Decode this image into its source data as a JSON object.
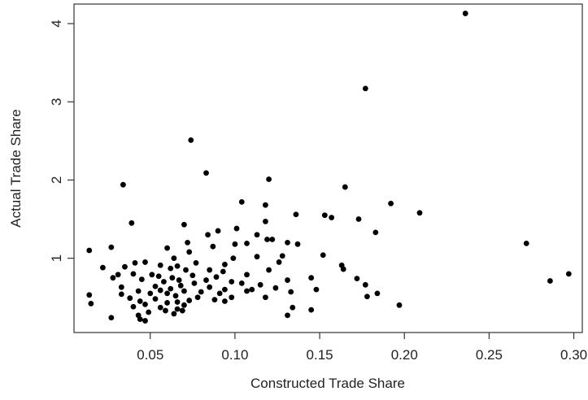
{
  "chart_data": {
    "type": "scatter",
    "title": "",
    "xlabel": "Constructed Trade Share",
    "ylabel": "Actual Trade Share",
    "xlim": [
      0.005,
      0.305
    ],
    "ylim": [
      0.05,
      4.25
    ],
    "x_ticks": [
      0.05,
      0.1,
      0.15,
      0.2,
      0.25,
      0.3
    ],
    "x_tick_labels": [
      "0.05",
      "0.10",
      "0.15",
      "0.20",
      "0.25",
      "0.30"
    ],
    "y_ticks": [
      1,
      2,
      3,
      4
    ],
    "y_tick_labels": [
      "1",
      "2",
      "3",
      "4"
    ],
    "grid": false,
    "marker_color": "#000000",
    "points": [
      [
        0.236,
        4.13
      ],
      [
        0.177,
        3.17
      ],
      [
        0.074,
        2.51
      ],
      [
        0.083,
        2.09
      ],
      [
        0.12,
        2.01
      ],
      [
        0.034,
        1.94
      ],
      [
        0.165,
        1.91
      ],
      [
        0.104,
        1.72
      ],
      [
        0.192,
        1.7
      ],
      [
        0.118,
        1.68
      ],
      [
        0.209,
        1.58
      ],
      [
        0.136,
        1.56
      ],
      [
        0.153,
        1.55
      ],
      [
        0.157,
        1.52
      ],
      [
        0.173,
        1.5
      ],
      [
        0.118,
        1.47
      ],
      [
        0.039,
        1.45
      ],
      [
        0.07,
        1.43
      ],
      [
        0.101,
        1.38
      ],
      [
        0.09,
        1.35
      ],
      [
        0.183,
        1.33
      ],
      [
        0.084,
        1.3
      ],
      [
        0.113,
        1.3
      ],
      [
        0.119,
        1.24
      ],
      [
        0.122,
        1.24
      ],
      [
        0.072,
        1.2
      ],
      [
        0.272,
        1.19
      ],
      [
        0.1,
        1.18
      ],
      [
        0.087,
        1.15
      ],
      [
        0.107,
        1.19
      ],
      [
        0.131,
        1.2
      ],
      [
        0.137,
        1.18
      ],
      [
        0.027,
        1.14
      ],
      [
        0.014,
        1.1
      ],
      [
        0.06,
        1.13
      ],
      [
        0.073,
        1.08
      ],
      [
        0.152,
        1.04
      ],
      [
        0.128,
        1.03
      ],
      [
        0.113,
        1.02
      ],
      [
        0.099,
        1.0
      ],
      [
        0.064,
        1.0
      ],
      [
        0.047,
        0.95
      ],
      [
        0.041,
        0.94
      ],
      [
        0.077,
        0.94
      ],
      [
        0.094,
        0.92
      ],
      [
        0.126,
        0.95
      ],
      [
        0.163,
        0.91
      ],
      [
        0.056,
        0.91
      ],
      [
        0.066,
        0.9
      ],
      [
        0.035,
        0.89
      ],
      [
        0.022,
        0.88
      ],
      [
        0.062,
        0.87
      ],
      [
        0.085,
        0.85
      ],
      [
        0.071,
        0.85
      ],
      [
        0.12,
        0.85
      ],
      [
        0.164,
        0.86
      ],
      [
        0.093,
        0.83
      ],
      [
        0.04,
        0.8
      ],
      [
        0.051,
        0.79
      ],
      [
        0.031,
        0.79
      ],
      [
        0.297,
        0.8
      ],
      [
        0.107,
        0.79
      ],
      [
        0.075,
        0.78
      ],
      [
        0.055,
        0.77
      ],
      [
        0.089,
        0.76
      ],
      [
        0.063,
        0.75
      ],
      [
        0.028,
        0.75
      ],
      [
        0.045,
        0.73
      ],
      [
        0.131,
        0.72
      ],
      [
        0.145,
        0.75
      ],
      [
        0.172,
        0.74
      ],
      [
        0.067,
        0.72
      ],
      [
        0.083,
        0.72
      ],
      [
        0.098,
        0.7
      ],
      [
        0.286,
        0.71
      ],
      [
        0.058,
        0.7
      ],
      [
        0.076,
        0.68
      ],
      [
        0.104,
        0.68
      ],
      [
        0.115,
        0.66
      ],
      [
        0.177,
        0.66
      ],
      [
        0.068,
        0.65
      ],
      [
        0.053,
        0.64
      ],
      [
        0.033,
        0.63
      ],
      [
        0.085,
        0.63
      ],
      [
        0.124,
        0.62
      ],
      [
        0.062,
        0.61
      ],
      [
        0.094,
        0.6
      ],
      [
        0.11,
        0.6
      ],
      [
        0.148,
        0.6
      ],
      [
        0.056,
        0.59
      ],
      [
        0.07,
        0.58
      ],
      [
        0.043,
        0.58
      ],
      [
        0.08,
        0.57
      ],
      [
        0.107,
        0.58
      ],
      [
        0.133,
        0.57
      ],
      [
        0.05,
        0.55
      ],
      [
        0.06,
        0.55
      ],
      [
        0.091,
        0.55
      ],
      [
        0.184,
        0.55
      ],
      [
        0.014,
        0.53
      ],
      [
        0.033,
        0.54
      ],
      [
        0.065,
        0.52
      ],
      [
        0.078,
        0.5
      ],
      [
        0.098,
        0.5
      ],
      [
        0.118,
        0.5
      ],
      [
        0.178,
        0.51
      ],
      [
        0.038,
        0.49
      ],
      [
        0.053,
        0.48
      ],
      [
        0.073,
        0.46
      ],
      [
        0.088,
        0.47
      ],
      [
        0.044,
        0.45
      ],
      [
        0.066,
        0.44
      ],
      [
        0.094,
        0.45
      ],
      [
        0.06,
        0.43
      ],
      [
        0.015,
        0.42
      ],
      [
        0.047,
        0.41
      ],
      [
        0.07,
        0.4
      ],
      [
        0.197,
        0.4
      ],
      [
        0.04,
        0.38
      ],
      [
        0.056,
        0.37
      ],
      [
        0.134,
        0.37
      ],
      [
        0.066,
        0.35
      ],
      [
        0.145,
        0.34
      ],
      [
        0.059,
        0.33
      ],
      [
        0.069,
        0.33
      ],
      [
        0.049,
        0.31
      ],
      [
        0.064,
        0.29
      ],
      [
        0.043,
        0.27
      ],
      [
        0.131,
        0.27
      ],
      [
        0.027,
        0.24
      ],
      [
        0.044,
        0.22
      ],
      [
        0.047,
        0.2
      ]
    ]
  }
}
